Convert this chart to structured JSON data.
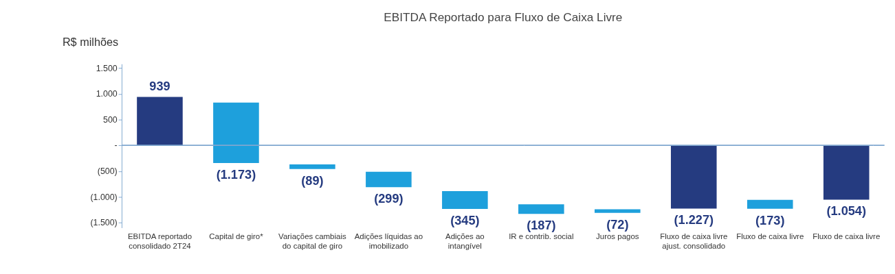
{
  "chart_data": {
    "type": "bar",
    "title": "EBITDA Reportado para Fluxo de Caixa Livre",
    "ylabel": "R$ milhões",
    "categories": [
      "EBITDA reportado consolidado 2T24",
      "Capital de giro*",
      "Variações cambiais do capital de giro",
      "Adições líquidas ao imobilizado",
      "Adições ao intangível",
      "IR e contrib. social",
      "Juros  pagos",
      "Fluxo de caixa livre ajust. consolidado",
      "Fluxo de caixa livre",
      "Fluxo de caixa livre"
    ],
    "values": [
      939,
      -1173,
      -89,
      -299,
      -345,
      -187,
      -72,
      -1227,
      -173,
      -1054
    ],
    "base": [
      0,
      830,
      -370,
      -515,
      -890,
      -1145,
      -1240,
      0,
      -1060,
      0
    ],
    "colors": [
      "#253b80",
      "#1ea0dc",
      "#1ea0dc",
      "#1ea0dc",
      "#1ea0dc",
      "#1ea0dc",
      "#1ea0dc",
      "#253b80",
      "#1ea0dc",
      "#253b80"
    ],
    "value_labels": [
      "939",
      "(1.173)",
      "(89)",
      "(299)",
      "(345)",
      "(187)",
      "(72)",
      "(1.227)",
      "(173)",
      "(1.054)"
    ],
    "ylim": [
      -1600,
      1580
    ],
    "yticks": [
      {
        "value": 1500,
        "label": "1.500"
      },
      {
        "value": 1000,
        "label": "1.000"
      },
      500,
      {
        "value": 0,
        "label": "-"
      },
      {
        "value": -500,
        "label": "(500)"
      },
      {
        "value": -1000,
        "label": "(1.000)"
      },
      {
        "value": -1500,
        "label": "(1.500)"
      }
    ],
    "ref_lines": [
      {
        "axis": "y",
        "value": 0,
        "color": "#7fa7cf"
      }
    ],
    "grid": false
  }
}
